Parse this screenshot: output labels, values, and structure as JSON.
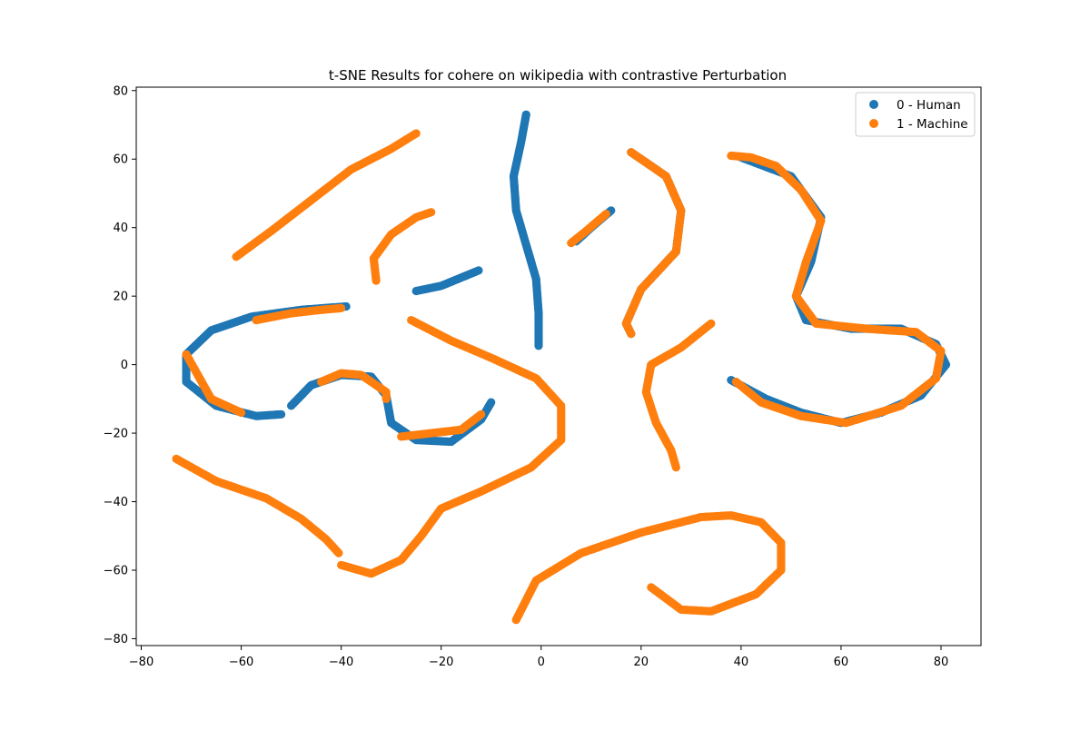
{
  "chart_data": {
    "type": "scatter",
    "title": "t-SNE Results for cohere on wikipedia with contrastive Perturbation",
    "xlabel": "",
    "ylabel": "",
    "xlim": [
      -81,
      88
    ],
    "ylim": [
      -82,
      81
    ],
    "x_ticks": [
      -80,
      -60,
      -40,
      -20,
      0,
      20,
      40,
      60,
      80
    ],
    "y_ticks": [
      -80,
      -60,
      -40,
      -20,
      0,
      20,
      40,
      60,
      80
    ],
    "x_tick_labels": [
      "−80",
      "−60",
      "−40",
      "−20",
      "0",
      "20",
      "40",
      "60",
      "80"
    ],
    "y_tick_labels": [
      "−80",
      "−60",
      "−40",
      "−20",
      "0",
      "20",
      "40",
      "60",
      "80"
    ],
    "grid": false,
    "legend_position": "upper right",
    "series": [
      {
        "name": "0 - Human",
        "color": "#1f77b4",
        "curves": [
          [
            [
              -3,
              73
            ],
            [
              -4,
              65
            ],
            [
              -5.5,
              55
            ],
            [
              -5,
              45
            ],
            [
              -3,
              35
            ],
            [
              -1,
              25
            ],
            [
              -0.5,
              15
            ],
            [
              -0.5,
              5.5
            ]
          ],
          [
            [
              -25,
              21.5
            ],
            [
              -20,
              23
            ],
            [
              -15,
              26
            ],
            [
              -12.5,
              27.5
            ]
          ],
          [
            [
              7,
              36
            ],
            [
              10,
              40
            ],
            [
              14,
              45
            ]
          ],
          [
            [
              -39,
              17
            ],
            [
              -48,
              16
            ],
            [
              -58,
              14
            ],
            [
              -66,
              10
            ],
            [
              -71,
              3
            ],
            [
              -71,
              -5
            ],
            [
              -65,
              -12
            ],
            [
              -57,
              -15
            ],
            [
              -52,
              -14.5
            ]
          ],
          [
            [
              -50,
              -12
            ],
            [
              -46,
              -6
            ],
            [
              -40,
              -3
            ],
            [
              -34,
              -3.5
            ],
            [
              -31,
              -9
            ],
            [
              -30,
              -17
            ],
            [
              -25,
              -22
            ],
            [
              -18,
              -22.5
            ],
            [
              -12,
              -16
            ],
            [
              -10,
              -11
            ]
          ],
          [
            [
              18,
              62
            ],
            [
              25,
              55
            ],
            [
              28,
              45
            ],
            [
              27,
              33
            ],
            [
              20,
              22
            ],
            [
              17,
              12
            ],
            [
              18,
              9
            ]
          ],
          [
            [
              40,
              60.5
            ],
            [
              50,
              55
            ],
            [
              56,
              43
            ],
            [
              54,
              30
            ],
            [
              51,
              20
            ],
            [
              53,
              13
            ],
            [
              62,
              10.5
            ],
            [
              72,
              10.5
            ],
            [
              79,
              6
            ],
            [
              81,
              0
            ],
            [
              76,
              -9
            ],
            [
              68,
              -14
            ],
            [
              60,
              -17
            ],
            [
              52,
              -14
            ],
            [
              45,
              -10
            ],
            [
              38,
              -4.5
            ]
          ]
        ]
      },
      {
        "name": "1 - Machine",
        "color": "#ff7f0e",
        "curves": [
          [
            [
              -61,
              31.5
            ],
            [
              -54,
              39
            ],
            [
              -46,
              48
            ],
            [
              -38,
              57
            ],
            [
              -30,
              63
            ],
            [
              -25,
              67.5
            ]
          ],
          [
            [
              -33,
              24.5
            ],
            [
              -33.5,
              31
            ],
            [
              -30,
              38
            ],
            [
              -25,
              43
            ],
            [
              -22,
              44.5
            ]
          ],
          [
            [
              -26,
              13
            ],
            [
              -18,
              7
            ],
            [
              -10,
              2
            ],
            [
              -1,
              -4
            ],
            [
              4,
              -12
            ],
            [
              4,
              -22
            ],
            [
              -2,
              -30
            ],
            [
              -12,
              -37
            ],
            [
              -20,
              -42
            ],
            [
              -24,
              -50
            ],
            [
              -28,
              -57
            ],
            [
              -34,
              -61
            ],
            [
              -40,
              -58.5
            ]
          ],
          [
            [
              -73,
              -27.5
            ],
            [
              -65,
              -34
            ],
            [
              -55,
              -39
            ],
            [
              -48,
              -45
            ],
            [
              -43,
              -51
            ],
            [
              -40.5,
              -55
            ]
          ],
          [
            [
              -5,
              -74.5
            ],
            [
              -1,
              -63
            ],
            [
              8,
              -55
            ],
            [
              20,
              -49
            ],
            [
              32,
              -44.5
            ],
            [
              38,
              -44
            ],
            [
              44,
              -46
            ],
            [
              48,
              -52
            ],
            [
              48,
              -60
            ],
            [
              43,
              -67
            ],
            [
              34,
              -72
            ],
            [
              28,
              -71.5
            ],
            [
              22,
              -65
            ]
          ],
          [
            [
              34,
              12
            ],
            [
              28,
              5
            ],
            [
              22,
              0
            ],
            [
              21,
              -8
            ],
            [
              23,
              -17
            ],
            [
              26,
              -25
            ],
            [
              27,
              -30
            ]
          ],
          [
            [
              6,
              35.5
            ],
            [
              9,
              39
            ],
            [
              13,
              44
            ]
          ],
          [
            [
              18,
              62
            ],
            [
              25,
              55
            ],
            [
              28,
              45
            ],
            [
              27,
              33
            ],
            [
              20,
              22
            ],
            [
              17,
              12
            ],
            [
              18,
              9
            ]
          ],
          [
            [
              38,
              61
            ],
            [
              42,
              60.5
            ],
            [
              47,
              58
            ],
            [
              52,
              51
            ],
            [
              56,
              42
            ],
            [
              53,
              30
            ],
            [
              51,
              20
            ],
            [
              55,
              12
            ],
            [
              65,
              10.5
            ],
            [
              75,
              9.5
            ],
            [
              80,
              4
            ],
            [
              79,
              -4
            ],
            [
              72,
              -12
            ],
            [
              61,
              -17
            ],
            [
              52,
              -15
            ],
            [
              44,
              -11
            ],
            [
              39,
              -5
            ]
          ],
          [
            [
              -71,
              3
            ],
            [
              -66,
              -10
            ],
            [
              -60,
              -14
            ]
          ],
          [
            [
              -57,
              13
            ],
            [
              -50,
              15
            ],
            [
              -44,
              16
            ],
            [
              -40,
              16.5
            ]
          ],
          [
            [
              -44,
              -5
            ],
            [
              -40,
              -2.5
            ],
            [
              -36,
              -3
            ],
            [
              -31,
              -8
            ],
            [
              -31,
              -10
            ]
          ],
          [
            [
              -28,
              -21
            ],
            [
              -16,
              -19
            ],
            [
              -12,
              -14.5
            ]
          ]
        ]
      }
    ]
  }
}
